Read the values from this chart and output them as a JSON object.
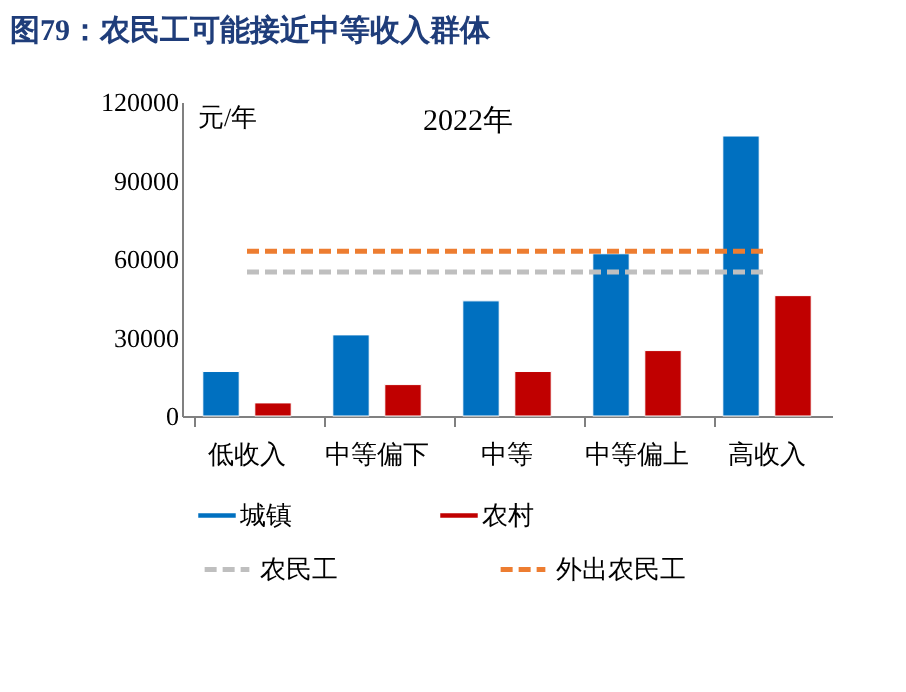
{
  "chart_data": {
    "type": "bar",
    "title": "图79：农民工可能接近中等收入群体",
    "subtitle": "2022年",
    "ylabel": "元/年",
    "categories": [
      "低收入",
      "中等偏下",
      "中等",
      "中等偏上",
      "高收入"
    ],
    "series": [
      {
        "name": "城镇",
        "color": "#0070c0",
        "values": [
          17000,
          31000,
          44000,
          62000,
          107000
        ]
      },
      {
        "name": "农村",
        "color": "#c00000",
        "values": [
          5000,
          12000,
          17000,
          25000,
          46000
        ]
      },
      {
        "name": "农民工",
        "type": "line",
        "line_style": "dashed",
        "color": "#bfbfbf",
        "values": [
          55000,
          55000,
          55000,
          55000,
          55000
        ]
      },
      {
        "name": "外出农民工",
        "type": "line",
        "line_style": "dashed",
        "color": "#ed7d31",
        "values": [
          63000,
          63000,
          63000,
          63000,
          63000
        ]
      }
    ],
    "ylim": [
      0,
      120000
    ],
    "yticks": [
      0,
      30000,
      60000,
      90000,
      120000
    ],
    "grid": false,
    "legend": "bottom",
    "marker": "none"
  }
}
